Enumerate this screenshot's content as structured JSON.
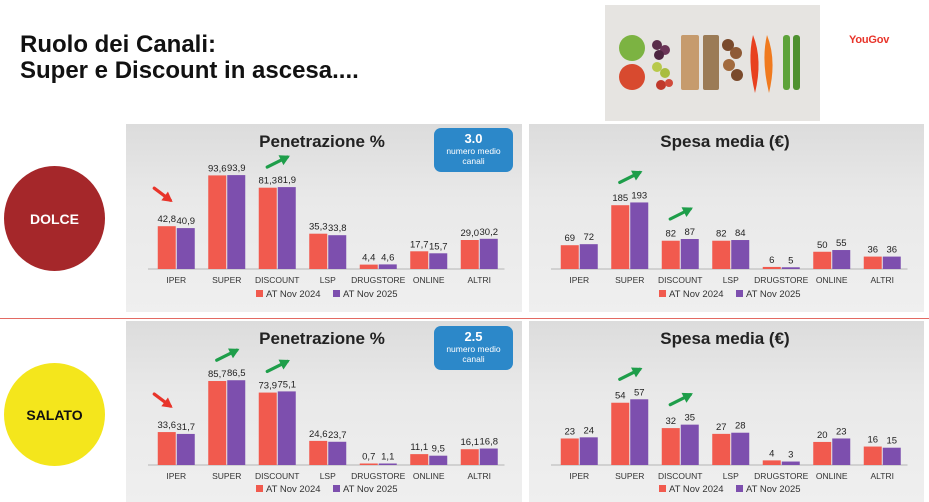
{
  "title": {
    "line1": "Ruolo dei Canali:",
    "line2": "Super e Discount in ascesa...."
  },
  "brand": "YouGov",
  "segments": {
    "dolce": "DOLCE",
    "salato": "SALATO"
  },
  "badges": [
    {
      "value": "3.0",
      "line1": "numero medio",
      "line2": "canali"
    },
    {
      "value": "2.5",
      "line1": "numero medio",
      "line2": "canali"
    }
  ],
  "colors": {
    "series1": "#f15a4e",
    "series2": "#7d4fae",
    "arrow_down": "#e8342a",
    "arrow_up": "#1e9e4a"
  },
  "chart_data": [
    {
      "id": "dolce-penetrazione",
      "type": "bar",
      "title": "Penetrazione %",
      "segment": "DOLCE",
      "categories": [
        "IPER",
        "SUPER",
        "DISCOUNT",
        "LSP",
        "DRUGSTORE",
        "ONLINE",
        "ALTRI"
      ],
      "ylim": [
        0,
        100
      ],
      "series": [
        {
          "name": "AT Nov 2024",
          "values": [
            42.8,
            93.6,
            81.3,
            35.3,
            4.4,
            17.7,
            29.0
          ],
          "labels": [
            "42,8",
            "93,6",
            "81,3",
            "35,3",
            "4,4",
            "17,7",
            "29,0"
          ]
        },
        {
          "name": "AT Nov 2025",
          "values": [
            40.9,
            93.9,
            81.9,
            33.8,
            4.6,
            15.7,
            30.2
          ],
          "labels": [
            "40,9",
            "93,9",
            "81,9",
            "33,8",
            "4,6",
            "15,7",
            "30,2"
          ]
        }
      ],
      "annotations": [
        {
          "category": "IPER",
          "arrow": "down"
        },
        {
          "category": "DISCOUNT",
          "arrow": "up"
        }
      ]
    },
    {
      "id": "dolce-spesa",
      "type": "bar",
      "title": "Spesa media (€)",
      "segment": "DOLCE",
      "categories": [
        "IPER",
        "SUPER",
        "DISCOUNT",
        "LSP",
        "DRUGSTORE",
        "ONLINE",
        "ALTRI"
      ],
      "ylim": [
        0,
        290
      ],
      "series": [
        {
          "name": "AT Nov 2024",
          "values": [
            69,
            185,
            82,
            82,
            6,
            50,
            36
          ],
          "labels": [
            "69",
            "185",
            "82",
            "82",
            "6",
            "50",
            "36"
          ]
        },
        {
          "name": "AT Nov 2025",
          "values": [
            72,
            193,
            87,
            84,
            5,
            55,
            36
          ],
          "labels": [
            "72",
            "193",
            "87",
            "84",
            "5",
            "55",
            "36"
          ]
        }
      ],
      "annotations": [
        {
          "category": "SUPER",
          "arrow": "up"
        },
        {
          "category": "DISCOUNT",
          "arrow": "up"
        }
      ]
    },
    {
      "id": "salato-penetrazione",
      "type": "bar",
      "title": "Penetrazione %",
      "segment": "SALATO",
      "categories": [
        "IPER",
        "SUPER",
        "DISCOUNT",
        "LSP",
        "DRUGSTORE",
        "ONLINE",
        "ALTRI"
      ],
      "ylim": [
        0,
        100
      ],
      "series": [
        {
          "name": "AT Nov 2024",
          "values": [
            33.6,
            85.7,
            73.9,
            24.6,
            0.7,
            11.1,
            16.1
          ],
          "labels": [
            "33,6",
            "85,7",
            "73,9",
            "24,6",
            "0,7",
            "11,1",
            "16,1"
          ]
        },
        {
          "name": "AT Nov 2025",
          "values": [
            31.7,
            86.5,
            75.1,
            23.7,
            1.1,
            9.5,
            16.8
          ],
          "labels": [
            "31,7",
            "86,5",
            "75,1",
            "23,7",
            "1,1",
            "9,5",
            "16,8"
          ]
        }
      ],
      "annotations": [
        {
          "category": "IPER",
          "arrow": "down"
        },
        {
          "category": "SUPER",
          "arrow": "up"
        },
        {
          "category": "DISCOUNT",
          "arrow": "up"
        }
      ]
    },
    {
      "id": "salato-spesa",
      "type": "bar",
      "title": "Spesa media (€)",
      "segment": "SALATO",
      "categories": [
        "IPER",
        "SUPER",
        "DISCOUNT",
        "LSP",
        "DRUGSTORE",
        "ONLINE",
        "ALTRI"
      ],
      "ylim": [
        0,
        85
      ],
      "series": [
        {
          "name": "AT Nov 2024",
          "values": [
            23,
            54,
            32,
            27,
            4,
            20,
            16
          ],
          "labels": [
            "23",
            "54",
            "32",
            "27",
            "4",
            "20",
            "16"
          ]
        },
        {
          "name": "AT Nov 2025",
          "values": [
            24,
            57,
            35,
            28,
            3,
            23,
            15
          ],
          "labels": [
            "24",
            "57",
            "35",
            "28",
            "3",
            "23",
            "15"
          ]
        }
      ],
      "annotations": [
        {
          "category": "SUPER",
          "arrow": "up"
        },
        {
          "category": "DISCOUNT",
          "arrow": "up"
        }
      ]
    }
  ]
}
